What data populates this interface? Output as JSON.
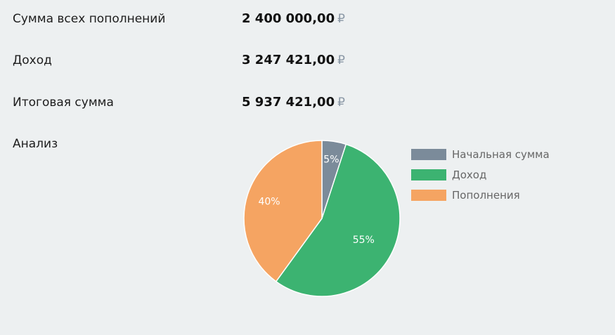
{
  "summary": {
    "rows": [
      {
        "label": "Сумма всех пополнений",
        "value": "2 400 000,00",
        "currency": "₽"
      },
      {
        "label": "Доход",
        "value": "3 247 421,00",
        "currency": "₽"
      },
      {
        "label": "Итоговая сумма",
        "value": "5 937 421,00",
        "currency": "₽"
      }
    ]
  },
  "analysis": {
    "label": "Анализ"
  },
  "chart_data": {
    "type": "pie",
    "title": "",
    "legend_position": "right",
    "slices": [
      {
        "name": "Начальная сумма",
        "value": 5,
        "label": "5%",
        "color": "#7b8b9a"
      },
      {
        "name": "Доход",
        "value": 55,
        "label": "55%",
        "color": "#3cb371"
      },
      {
        "name": "Пополнения",
        "value": 40,
        "label": "40%",
        "color": "#f5a462"
      }
    ]
  }
}
